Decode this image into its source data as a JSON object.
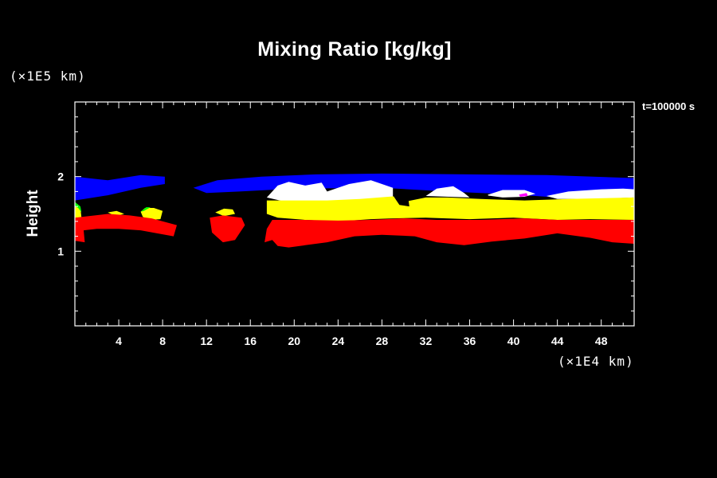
{
  "chart_data": {
    "type": "heatmap",
    "title": "Mixing Ratio [kg/kg]",
    "ylabel": "Height",
    "xlabel": "",
    "x_unit": "(×1E4 km)",
    "y_unit": "(×1E5 km)",
    "time_label": "t=100000 s",
    "xlim": [
      0,
      51
    ],
    "ylim": [
      0,
      3.0
    ],
    "x_ticks": [
      4,
      8,
      12,
      16,
      20,
      24,
      28,
      32,
      36,
      40,
      44,
      48
    ],
    "y_ticks": [
      1,
      2
    ],
    "x_minor_step": 1,
    "y_minor_step": 0.2,
    "grid": false,
    "colors": {
      "background": "#000000",
      "axes": "#ffffff",
      "layer_top": "#0000ff",
      "layer_cloud": "#ffffff",
      "layer_mid": "#ffff00",
      "layer_low": "#ff0000",
      "fringe": "#00ff00",
      "accent": "#ff00ff"
    },
    "regions": [
      {
        "color": "layer_top",
        "points": [
          [
            0,
            2.0
          ],
          [
            3,
            1.95
          ],
          [
            6,
            2.02
          ],
          [
            8.2,
            2.0
          ],
          [
            8.2,
            1.9
          ],
          [
            6,
            1.85
          ],
          [
            3,
            1.75
          ],
          [
            0,
            1.68
          ]
        ]
      },
      {
        "color": "layer_top",
        "points": [
          [
            10.8,
            1.85
          ],
          [
            13,
            1.95
          ],
          [
            17,
            2.0
          ],
          [
            22,
            2.03
          ],
          [
            28,
            2.04
          ],
          [
            36,
            2.03
          ],
          [
            43,
            2.02
          ],
          [
            51,
            1.98
          ],
          [
            51,
            1.8
          ],
          [
            46,
            1.7
          ],
          [
            40,
            1.76
          ],
          [
            34,
            1.8
          ],
          [
            28,
            1.85
          ],
          [
            20,
            1.84
          ],
          [
            15,
            1.8
          ],
          [
            12,
            1.78
          ]
        ]
      },
      {
        "color": "layer_cloud",
        "points": [
          [
            17.5,
            1.72
          ],
          [
            18.5,
            1.88
          ],
          [
            19.5,
            1.93
          ],
          [
            21,
            1.88
          ],
          [
            22.5,
            1.92
          ],
          [
            23,
            1.8
          ],
          [
            25,
            1.9
          ],
          [
            27,
            1.95
          ],
          [
            29,
            1.85
          ],
          [
            29,
            1.72
          ],
          [
            26,
            1.68
          ],
          [
            22,
            1.66
          ],
          [
            19,
            1.67
          ]
        ]
      },
      {
        "color": "layer_cloud",
        "points": [
          [
            32,
            1.74
          ],
          [
            33,
            1.84
          ],
          [
            34.5,
            1.87
          ],
          [
            35.5,
            1.78
          ],
          [
            36,
            1.72
          ]
        ]
      },
      {
        "color": "layer_cloud",
        "points": [
          [
            37.5,
            1.75
          ],
          [
            39,
            1.82
          ],
          [
            41,
            1.82
          ],
          [
            42,
            1.77
          ],
          [
            41,
            1.73
          ],
          [
            39,
            1.72
          ]
        ]
      },
      {
        "color": "layer_cloud",
        "points": [
          [
            43,
            1.74
          ],
          [
            45,
            1.8
          ],
          [
            48,
            1.83
          ],
          [
            50,
            1.84
          ],
          [
            51,
            1.83
          ],
          [
            51,
            1.72
          ],
          [
            47,
            1.7
          ],
          [
            44,
            1.7
          ]
        ]
      },
      {
        "color": "layer_mid",
        "points": [
          [
            17.5,
            1.68
          ],
          [
            20,
            1.68
          ],
          [
            23,
            1.68
          ],
          [
            26,
            1.7
          ],
          [
            29.5,
            1.74
          ],
          [
            30,
            1.66
          ],
          [
            32,
            1.72
          ],
          [
            34,
            1.72
          ],
          [
            37,
            1.7
          ],
          [
            41,
            1.68
          ],
          [
            45,
            1.7
          ],
          [
            51,
            1.72
          ],
          [
            51,
            1.42
          ],
          [
            47,
            1.43
          ],
          [
            44,
            1.42
          ],
          [
            40,
            1.45
          ],
          [
            36,
            1.43
          ],
          [
            32,
            1.45
          ],
          [
            29,
            1.44
          ],
          [
            27,
            1.43
          ],
          [
            24,
            1.4
          ],
          [
            21,
            1.42
          ],
          [
            18.5,
            1.45
          ],
          [
            17.5,
            1.5
          ]
        ]
      },
      {
        "color": "layer_mid",
        "points": [
          [
            6,
            1.53
          ],
          [
            6.4,
            1.58
          ],
          [
            7.2,
            1.58
          ],
          [
            8,
            1.54
          ],
          [
            7.8,
            1.43
          ],
          [
            6.8,
            1.42
          ],
          [
            6.2,
            1.46
          ]
        ]
      },
      {
        "color": "layer_mid",
        "points": [
          [
            3,
            1.52
          ],
          [
            3.8,
            1.54
          ],
          [
            4.5,
            1.5
          ],
          [
            3.7,
            1.47
          ]
        ]
      },
      {
        "color": "layer_mid",
        "points": [
          [
            12.8,
            1.52
          ],
          [
            13.6,
            1.57
          ],
          [
            14.4,
            1.56
          ],
          [
            14.6,
            1.5
          ],
          [
            13.6,
            1.47
          ]
        ]
      },
      {
        "color": "layer_mid",
        "points": [
          [
            0,
            1.63
          ],
          [
            0.5,
            1.58
          ],
          [
            0.6,
            1.45
          ],
          [
            0,
            1.45
          ]
        ]
      },
      {
        "color": "layer_low",
        "points": [
          [
            0,
            1.45
          ],
          [
            3,
            1.5
          ],
          [
            5,
            1.48
          ],
          [
            7,
            1.44
          ],
          [
            9.3,
            1.35
          ],
          [
            9,
            1.2
          ],
          [
            7.5,
            1.24
          ],
          [
            6,
            1.28
          ],
          [
            4,
            1.3
          ],
          [
            2,
            1.3
          ],
          [
            0.8,
            1.28
          ],
          [
            0.9,
            1.12
          ],
          [
            0,
            1.14
          ]
        ]
      },
      {
        "color": "layer_low",
        "points": [
          [
            12.3,
            1.45
          ],
          [
            13.5,
            1.48
          ],
          [
            15.2,
            1.45
          ],
          [
            15.5,
            1.35
          ],
          [
            14.6,
            1.15
          ],
          [
            13.5,
            1.12
          ],
          [
            12.5,
            1.25
          ]
        ]
      },
      {
        "color": "layer_low",
        "points": [
          [
            18,
            1.42
          ],
          [
            21,
            1.42
          ],
          [
            24,
            1.41
          ],
          [
            27,
            1.42
          ],
          [
            30,
            1.44
          ],
          [
            33,
            1.42
          ],
          [
            37,
            1.42
          ],
          [
            41,
            1.44
          ],
          [
            44,
            1.42
          ],
          [
            48,
            1.42
          ],
          [
            51,
            1.42
          ],
          [
            51,
            1.1
          ],
          [
            49,
            1.12
          ],
          [
            47,
            1.18
          ],
          [
            44,
            1.24
          ],
          [
            41,
            1.17
          ],
          [
            38,
            1.13
          ],
          [
            35.5,
            1.08
          ],
          [
            33,
            1.12
          ],
          [
            31,
            1.2
          ],
          [
            28,
            1.22
          ],
          [
            25.5,
            1.2
          ],
          [
            23,
            1.12
          ],
          [
            21,
            1.08
          ],
          [
            19.5,
            1.05
          ],
          [
            18.5,
            1.07
          ],
          [
            18,
            1.15
          ],
          [
            17.3,
            1.12
          ],
          [
            17.5,
            1.3
          ]
        ]
      },
      {
        "color": "fringe",
        "points": [
          [
            6,
            1.53
          ],
          [
            6.5,
            1.59
          ],
          [
            6.9,
            1.59
          ],
          [
            6.3,
            1.54
          ]
        ]
      },
      {
        "color": "fringe",
        "points": [
          [
            0,
            1.66
          ],
          [
            0.5,
            1.6
          ],
          [
            0.6,
            1.52
          ],
          [
            0.3,
            1.58
          ],
          [
            0,
            1.6
          ]
        ]
      },
      {
        "color": "accent",
        "points": [
          [
            40.5,
            1.76
          ],
          [
            41.2,
            1.78
          ],
          [
            41.3,
            1.74
          ],
          [
            40.6,
            1.73
          ]
        ]
      }
    ],
    "notches": [
      {
        "color": "background",
        "points": [
          [
            29,
            1.75
          ],
          [
            30.3,
            1.82
          ],
          [
            30.5,
            1.6
          ],
          [
            29.6,
            1.62
          ]
        ]
      },
      {
        "color": "background",
        "points": [
          [
            36.5,
            1.72
          ],
          [
            37.6,
            1.78
          ],
          [
            37.8,
            1.7
          ]
        ]
      }
    ]
  }
}
